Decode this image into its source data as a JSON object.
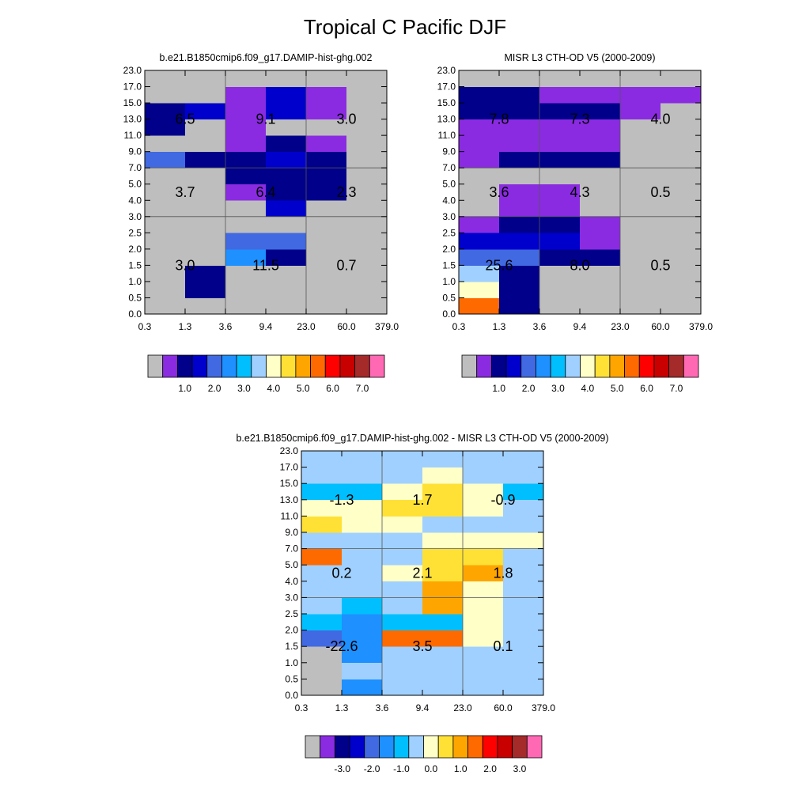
{
  "title": "Tropical C Pacific DJF",
  "palette": [
    "#bebebe",
    "#8a2be2",
    "#00008b",
    "#0000cd",
    "#4169e1",
    "#1e90ff",
    "#00bfff",
    "#a0d0ff",
    "#ffffc8",
    "#ffe135",
    "#ffa500",
    "#ff6a00",
    "#ff0000",
    "#c80000",
    "#a52a2a",
    "#ff69b4"
  ],
  "x_ticks": [
    "0.3",
    "1.3",
    "3.6",
    "9.4",
    "23.0",
    "60.0",
    "379.0"
  ],
  "y_ticks": [
    "0.0",
    "0.5",
    "1.0",
    "1.5",
    "2.0",
    "2.5",
    "3.0",
    "4.0",
    "5.0",
    "7.0",
    "9.0",
    "11.0",
    "13.0",
    "15.0",
    "17.0",
    "23.0"
  ],
  "chart_data": [
    {
      "type": "heatmap",
      "title": "b.e21.B1850cmip6.f09_g17.DAMIP-hist-ghg.002",
      "colorbar_labels": [
        "1.0",
        "2.0",
        "3.0",
        "4.0",
        "5.0",
        "6.0",
        "7.0"
      ],
      "colorbar_levels": [
        0.5,
        1,
        1.5,
        2,
        2.5,
        3,
        3.5,
        4,
        4.5,
        5,
        5.5,
        6,
        6.5,
        7
      ],
      "grid": [
        [
          0,
          0,
          0,
          0,
          0,
          0
        ],
        [
          0,
          2,
          0,
          0,
          0,
          0
        ],
        [
          0,
          2,
          0,
          0,
          0,
          0
        ],
        [
          0,
          0,
          5,
          2,
          0,
          0
        ],
        [
          0,
          0,
          4,
          4,
          0,
          0
        ],
        [
          0,
          0,
          0,
          0,
          0,
          0
        ],
        [
          0,
          0,
          0,
          3,
          0,
          0
        ],
        [
          0,
          0,
          1,
          2,
          2,
          0
        ],
        [
          0,
          0,
          2,
          2,
          2,
          0
        ],
        [
          4,
          2,
          2,
          3,
          2,
          0
        ],
        [
          0,
          0,
          1,
          2,
          1,
          0
        ],
        [
          2,
          0,
          1,
          0,
          0,
          0
        ],
        [
          2,
          3,
          1,
          3,
          1,
          0
        ],
        [
          0,
          0,
          1,
          3,
          1,
          0
        ],
        [
          0,
          0,
          0,
          0,
          0,
          0
        ]
      ],
      "sums": [
        {
          "text": "3.0",
          "col": 0,
          "band": 0
        },
        {
          "text": "11.5",
          "col": 1,
          "band": 0
        },
        {
          "text": "0.7",
          "col": 2,
          "band": 0
        },
        {
          "text": "3.7",
          "col": 0,
          "band": 1
        },
        {
          "text": "6.4",
          "col": 1,
          "band": 1
        },
        {
          "text": "2.3",
          "col": 2,
          "band": 1
        },
        {
          "text": "6.5",
          "col": 0,
          "band": 2
        },
        {
          "text": "9.1",
          "col": 1,
          "band": 2
        },
        {
          "text": "3.0",
          "col": 2,
          "band": 2
        }
      ]
    },
    {
      "type": "heatmap",
      "title": "MISR L3 CTH-OD V5 (2000-2009)",
      "colorbar_labels": [
        "1.0",
        "2.0",
        "3.0",
        "4.0",
        "5.0",
        "6.0",
        "7.0"
      ],
      "colorbar_levels": [
        0.5,
        1,
        1.5,
        2,
        2.5,
        3,
        3.5,
        4,
        4.5,
        5,
        5.5,
        6,
        6.5,
        7
      ],
      "grid": [
        [
          11,
          2,
          0,
          0,
          0,
          0
        ],
        [
          8,
          2,
          0,
          0,
          0,
          0
        ],
        [
          7,
          2,
          0,
          0,
          0,
          0
        ],
        [
          4,
          4,
          2,
          2,
          0,
          0
        ],
        [
          3,
          3,
          3,
          1,
          0,
          0
        ],
        [
          1,
          2,
          2,
          1,
          0,
          0
        ],
        [
          0,
          1,
          1,
          0,
          0,
          0
        ],
        [
          0,
          1,
          1,
          0,
          0,
          0
        ],
        [
          0,
          0,
          0,
          0,
          0,
          0
        ],
        [
          1,
          2,
          2,
          2,
          0,
          0
        ],
        [
          1,
          1,
          1,
          1,
          0,
          0
        ],
        [
          1,
          1,
          1,
          1,
          0,
          0
        ],
        [
          2,
          2,
          2,
          2,
          1,
          0
        ],
        [
          2,
          2,
          1,
          1,
          1,
          1
        ],
        [
          0,
          0,
          0,
          0,
          0,
          0
        ]
      ],
      "sums": [
        {
          "text": "25.6",
          "col": 0,
          "band": 0
        },
        {
          "text": "8.0",
          "col": 1,
          "band": 0
        },
        {
          "text": "0.5",
          "col": 2,
          "band": 0
        },
        {
          "text": "3.6",
          "col": 0,
          "band": 1
        },
        {
          "text": "4.3",
          "col": 1,
          "band": 1
        },
        {
          "text": "0.5",
          "col": 2,
          "band": 1
        },
        {
          "text": "7.8",
          "col": 0,
          "band": 2
        },
        {
          "text": "7.3",
          "col": 1,
          "band": 2
        },
        {
          "text": "4.0",
          "col": 2,
          "band": 2
        }
      ]
    },
    {
      "type": "heatmap",
      "title": "b.e21.B1850cmip6.f09_g17.DAMIP-hist-ghg.002 - MISR L3 CTH-OD V5 (2000-2009)",
      "colorbar_labels": [
        "-3.0",
        "-2.0",
        "-1.0",
        "0.0",
        "1.0",
        "2.0",
        "3.0"
      ],
      "colorbar_levels": [
        -3.5,
        -3,
        -2.5,
        -2,
        -1.5,
        -1,
        -0.5,
        0,
        0.5,
        1,
        1.5,
        2,
        2.5,
        3
      ],
      "grid": [
        [
          0,
          5,
          7,
          7,
          7,
          7
        ],
        [
          0,
          7,
          7,
          7,
          7,
          7
        ],
        [
          0,
          5,
          7,
          7,
          7,
          7
        ],
        [
          4,
          5,
          11,
          11,
          8,
          7
        ],
        [
          6,
          5,
          6,
          6,
          8,
          7
        ],
        [
          7,
          6,
          7,
          10,
          8,
          7
        ],
        [
          7,
          7,
          7,
          10,
          8,
          7
        ],
        [
          7,
          7,
          8,
          9,
          10,
          7
        ],
        [
          11,
          7,
          7,
          9,
          9,
          7
        ],
        [
          7,
          7,
          7,
          8,
          8,
          8
        ],
        [
          9,
          8,
          8,
          7,
          7,
          7
        ],
        [
          8,
          8,
          9,
          9,
          8,
          7
        ],
        [
          6,
          6,
          8,
          9,
          8,
          6
        ],
        [
          7,
          7,
          7,
          8,
          7,
          7
        ],
        [
          7,
          7,
          7,
          7,
          7,
          7
        ]
      ],
      "sums": [
        {
          "text": "-22.6",
          "col": 0,
          "band": 0
        },
        {
          "text": "3.5",
          "col": 1,
          "band": 0
        },
        {
          "text": "0.1",
          "col": 2,
          "band": 0
        },
        {
          "text": "0.2",
          "col": 0,
          "band": 1
        },
        {
          "text": "2.1",
          "col": 1,
          "band": 1
        },
        {
          "text": "1.8",
          "col": 2,
          "band": 1
        },
        {
          "text": "-1.3",
          "col": 0,
          "band": 2
        },
        {
          "text": "1.7",
          "col": 1,
          "band": 2
        },
        {
          "text": "-0.9",
          "col": 2,
          "band": 2
        }
      ]
    }
  ]
}
